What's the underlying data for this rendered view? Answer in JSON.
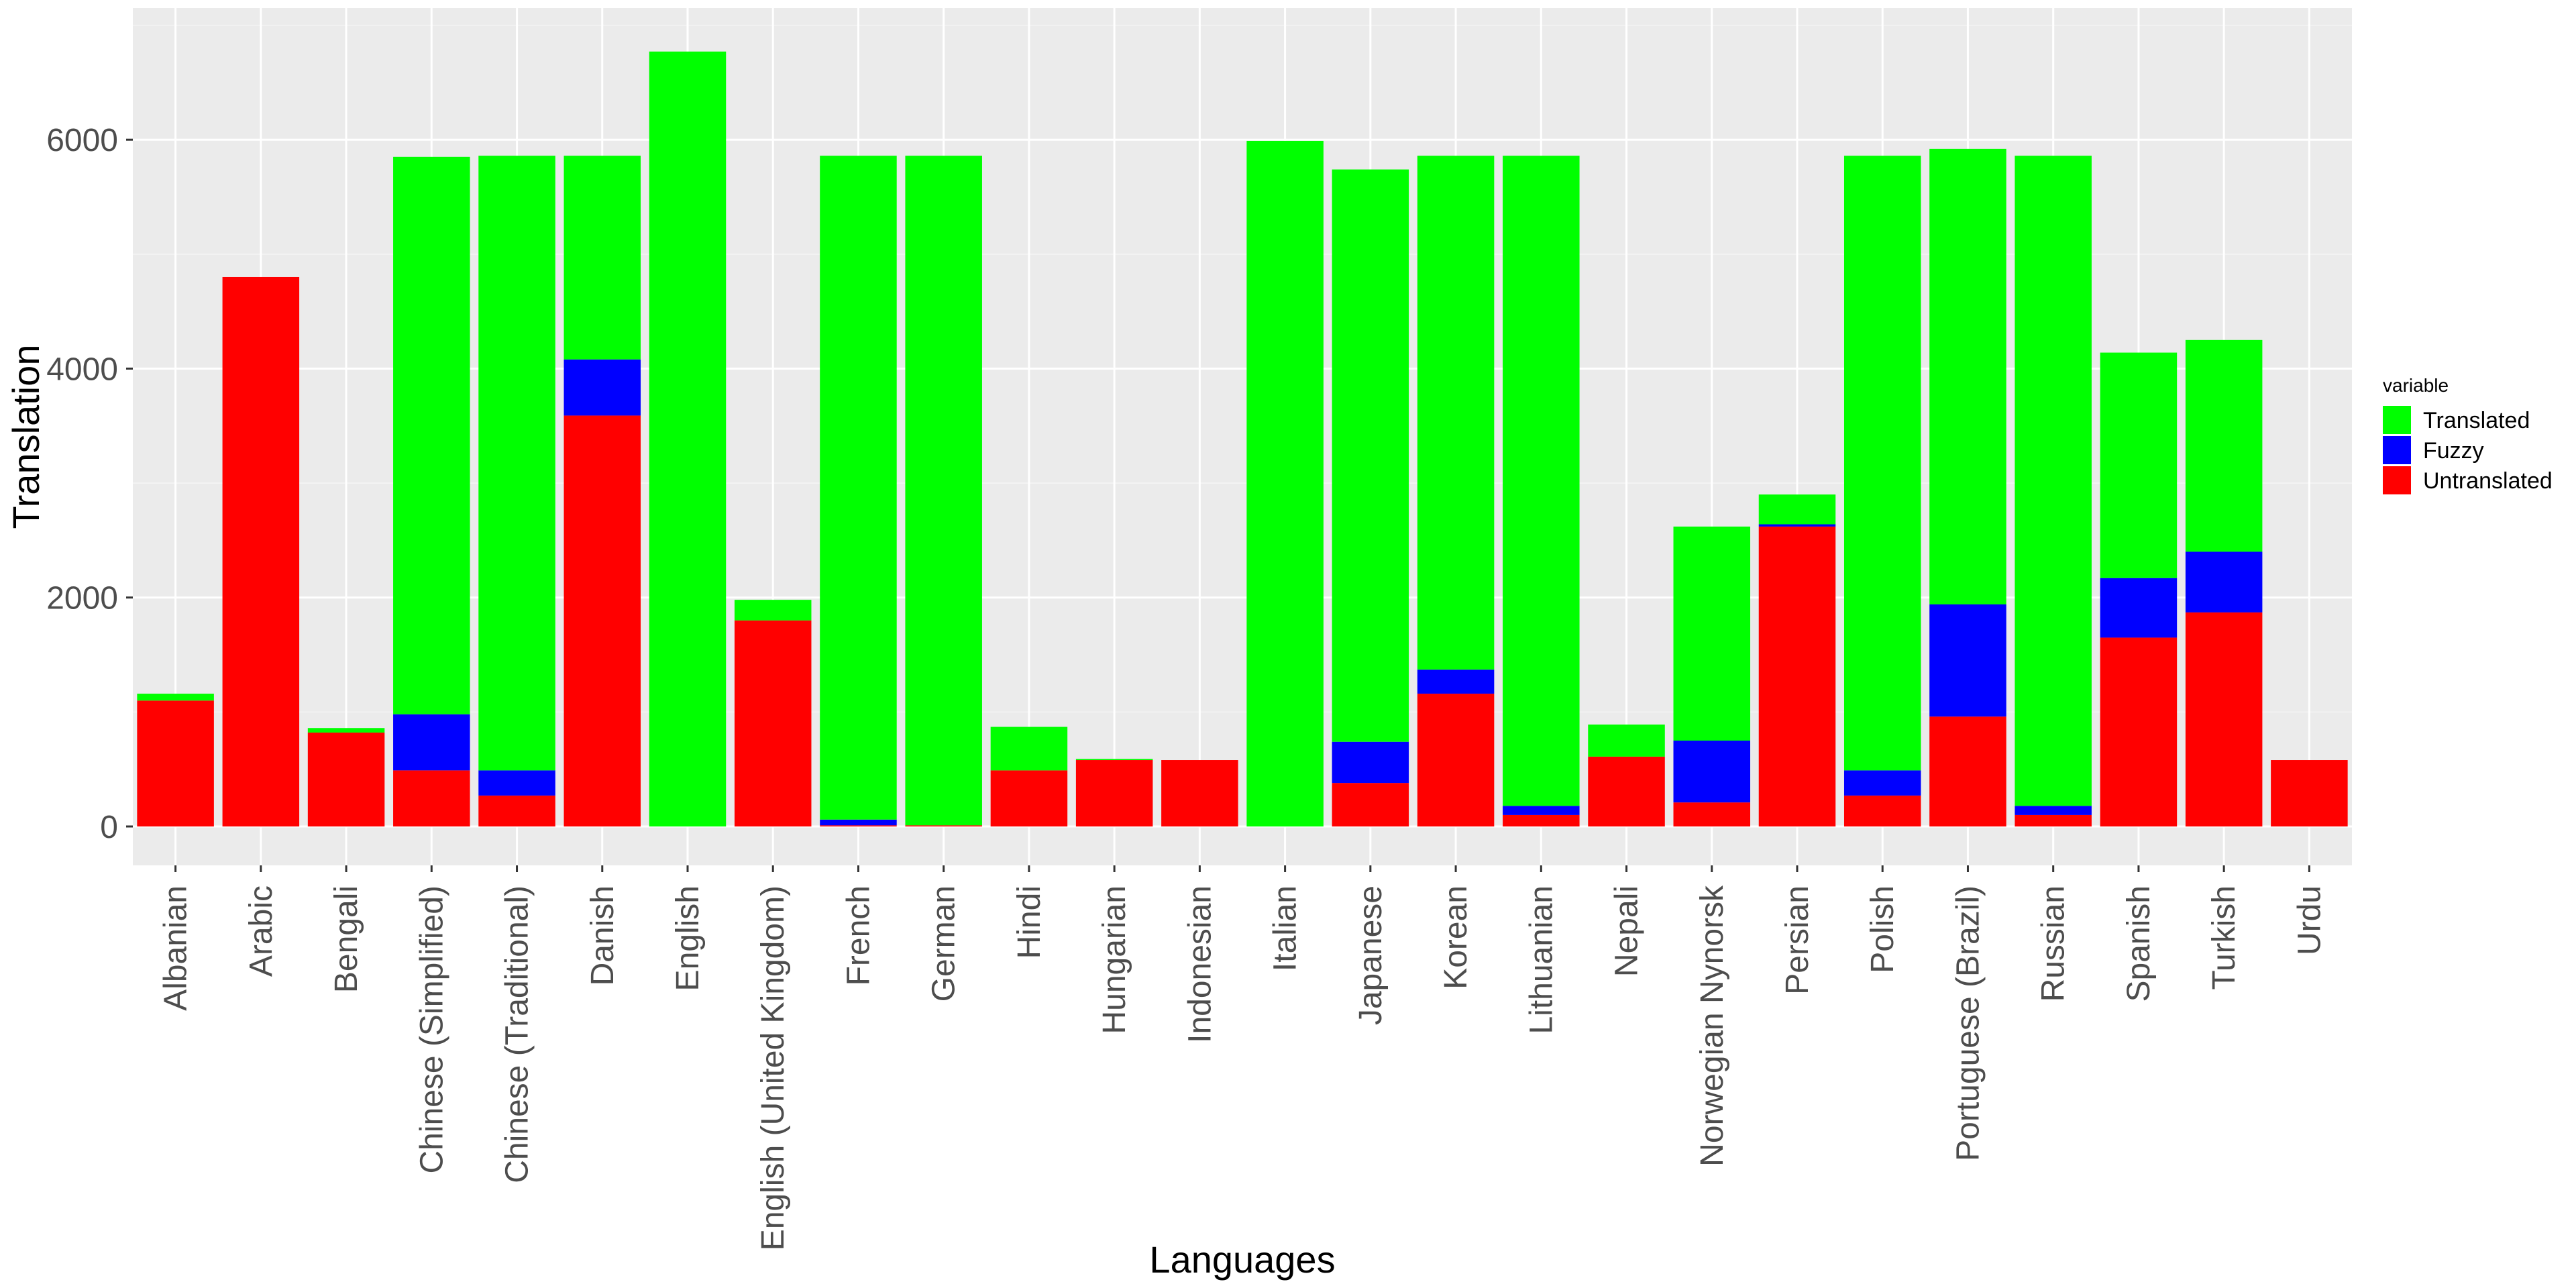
{
  "chart_data": {
    "type": "bar",
    "stacked": true,
    "xlabel": "Languages",
    "ylabel": "Translation",
    "ylim": [
      -340,
      7150
    ],
    "yticks": [
      0,
      2000,
      4000,
      6000
    ],
    "ytick_labels": [
      "0",
      "2000",
      "4000",
      "6000"
    ],
    "grid": true,
    "legend_position": "right",
    "legend_title": "variable",
    "categories": [
      "Albanian",
      "Arabic",
      "Bengali",
      "Chinese (Simplified)",
      "Chinese (Traditional)",
      "Danish",
      "English",
      "English (United Kingdom)",
      "French",
      "German",
      "Hindi",
      "Hungarian",
      "Indonesian",
      "Italian",
      "Japanese",
      "Korean",
      "Lithuanian",
      "Nepali",
      "Norwegian Nynorsk",
      "Persian",
      "Polish",
      "Portuguese (Brazil)",
      "Russian",
      "Spanish",
      "Turkish",
      "Urdu"
    ],
    "series": [
      {
        "name": "Untranslated",
        "color": "#ff0000",
        "values": [
          1100,
          4800,
          820,
          490,
          270,
          3590,
          0,
          1800,
          10,
          10,
          490,
          580,
          580,
          0,
          380,
          1160,
          100,
          610,
          210,
          2620,
          270,
          960,
          100,
          1650,
          1870,
          580
        ]
      },
      {
        "name": "Fuzzy",
        "color": "#0000ff",
        "values": [
          0,
          0,
          0,
          490,
          220,
          490,
          0,
          0,
          50,
          0,
          0,
          0,
          0,
          0,
          360,
          210,
          80,
          0,
          540,
          20,
          220,
          980,
          80,
          520,
          530,
          0
        ]
      },
      {
        "name": "Translated",
        "color": "#00ff00",
        "values": [
          60,
          0,
          40,
          4870,
          5370,
          1780,
          6770,
          180,
          5800,
          5850,
          380,
          10,
          0,
          5990,
          5000,
          4490,
          5680,
          280,
          1870,
          260,
          5370,
          3980,
          5680,
          1970,
          1850,
          0
        ]
      }
    ]
  }
}
